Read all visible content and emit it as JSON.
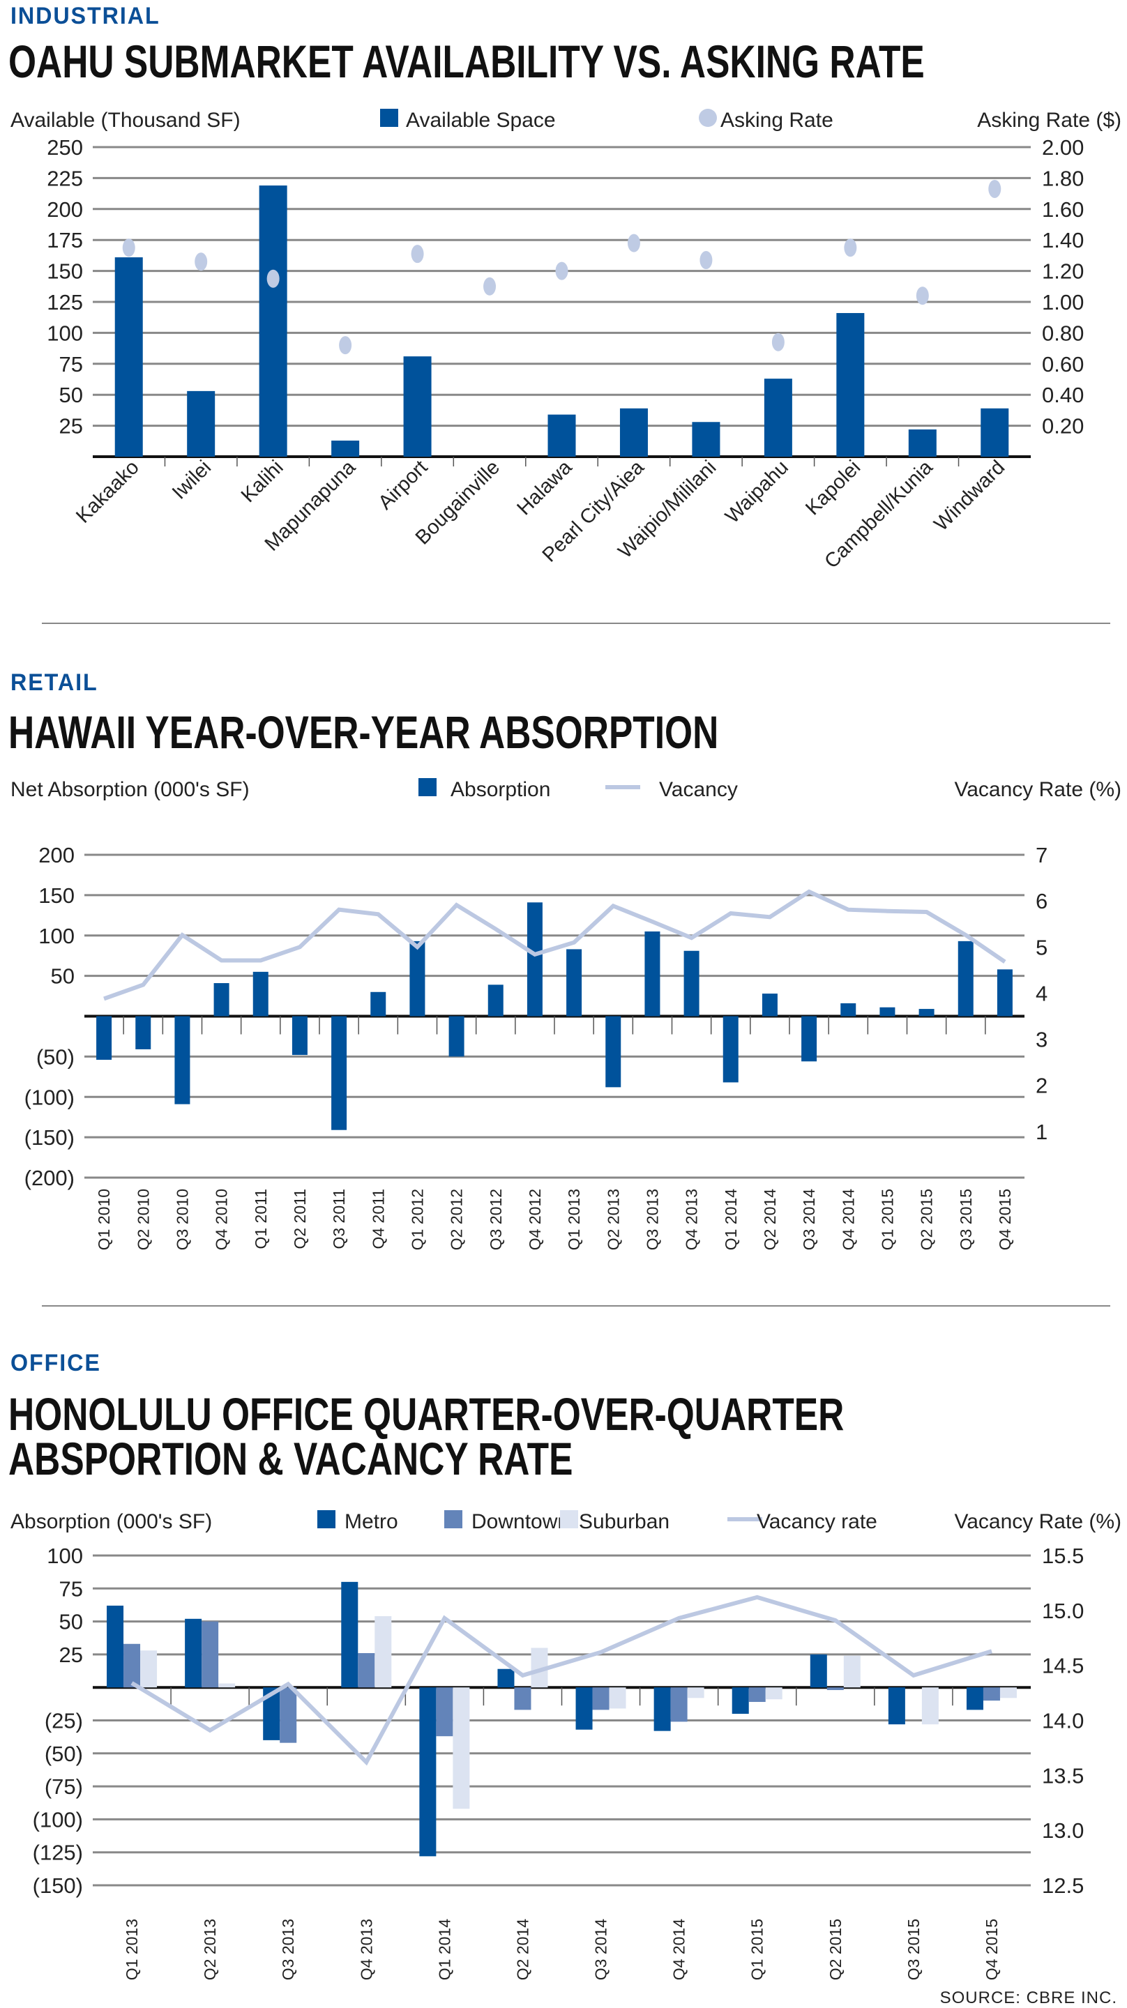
{
  "colors": {
    "metro": "#00529b",
    "downtown": "#6384b9",
    "suburban": "#dce3f1",
    "line": "#bcc8e2",
    "dot": "#bfcbe4",
    "grid": "#888888"
  },
  "source": "SOURCE: CBRE INC.",
  "chart_data": [
    {
      "section": "INDUSTRIAL",
      "type": "bar",
      "title": "OAHU SUBMARKET AVAILABILITY VS. ASKING RATE",
      "ylabel": "Available (Thousand SF)",
      "y2label": "Asking Rate ($)",
      "legend": [
        "Available Space",
        "Asking Rate"
      ],
      "ylim": [
        0,
        250
      ],
      "y2lim": [
        0,
        2.0
      ],
      "yticks": [
        "25",
        "50",
        "75",
        "100",
        "125",
        "150",
        "175",
        "200",
        "225",
        "250"
      ],
      "y2ticks": [
        "0.20",
        "0.40",
        "0.60",
        "0.80",
        "1.00",
        "1.20",
        "1.40",
        "1.60",
        "1.80",
        "2.00"
      ],
      "categories": [
        "Kakaako",
        "Iwilei",
        "Kalihi",
        "Mapunapuna",
        "Airport",
        "Bougainville",
        "Halawa",
        "Pearl City/Aiea",
        "Waipio/Mililani",
        "Waipahu",
        "Kapolei",
        "Campbell/Kunia",
        "Windward"
      ],
      "series": [
        {
          "name": "Available Space",
          "type": "bar",
          "values": [
            161,
            53,
            219,
            13,
            81,
            0,
            34,
            39,
            28,
            63,
            116,
            22,
            39
          ]
        },
        {
          "name": "Asking Rate",
          "type": "scatter",
          "axis": "right",
          "values": [
            1.35,
            1.26,
            1.15,
            0.72,
            1.31,
            1.1,
            1.2,
            1.38,
            1.27,
            0.74,
            1.35,
            1.04,
            1.73
          ]
        }
      ],
      "grid": true
    },
    {
      "section": "RETAIL",
      "type": "bar",
      "title": "HAWAII YEAR-OVER-YEAR ABSORPTION",
      "ylabel": "Net Absorption (000's SF)",
      "y2label": "Vacancy Rate (%)",
      "legend": [
        "Absorption",
        "Vacancy"
      ],
      "ylim": [
        -200,
        200
      ],
      "y2lim": [
        0,
        7
      ],
      "yticks": [
        "(200)",
        "(150)",
        "(100)",
        "(50)",
        "",
        "50",
        "100",
        "150",
        "200"
      ],
      "y2ticks": [
        "1",
        "2",
        "3",
        "4",
        "5",
        "6",
        "7"
      ],
      "categories": [
        "Q1 2010",
        "Q2 2010",
        "Q3 2010",
        "Q4 2010",
        "Q1 2011",
        "Q2 2011",
        "Q3 2011",
        "Q4 2011",
        "Q1 2012",
        "Q2 2012",
        "Q3 2012",
        "Q4 2012",
        "Q1 2013",
        "Q2 2013",
        "Q3 2013",
        "Q4 2013",
        "Q1 2014",
        "Q2 2014",
        "Q3 2014",
        "Q4 2014",
        "Q1 2015",
        "Q2 2015",
        "Q3 2015",
        "Q4 2015"
      ],
      "series": [
        {
          "name": "Absorption",
          "type": "bar",
          "values": [
            -54,
            -41,
            -109,
            41,
            55,
            -48,
            -141,
            30,
            93,
            -50,
            39,
            141,
            83,
            -88,
            105,
            81,
            -82,
            28,
            -56,
            16,
            11,
            9,
            93,
            58
          ]
        },
        {
          "name": "Vacancy",
          "type": "line",
          "axis": "right",
          "values": [
            3.88,
            4.18,
            5.26,
            4.71,
            4.71,
            5.0,
            5.81,
            5.71,
            5.0,
            5.91,
            5.39,
            4.84,
            5.1,
            5.89,
            5.55,
            5.2,
            5.73,
            5.65,
            6.2,
            5.81,
            5.78,
            5.76,
            5.26,
            4.68
          ]
        }
      ],
      "grid": true
    },
    {
      "section": "OFFICE",
      "type": "bar",
      "title": "HONOLULU OFFICE QUARTER-OVER-QUARTER",
      "title2": "ABSPORTION & VACANCY RATE",
      "ylabel": "Absorption (000's SF)",
      "y2label": "Vacancy Rate (%)",
      "legend": [
        "Metro",
        "Downtown",
        "Suburban",
        "Vacancy rate"
      ],
      "ylim": [
        -150,
        100
      ],
      "y2lim": [
        12.5,
        15.5
      ],
      "yticks": [
        "(150)",
        "(125)",
        "(100)",
        "(75)",
        "(50)",
        "(25)",
        "",
        "25",
        "50",
        "75",
        "100"
      ],
      "y2ticks": [
        "12.5",
        "13.0",
        "13.5",
        "14.0",
        "14.5",
        "15.0",
        "15.5"
      ],
      "categories": [
        "Q1 2013",
        "Q2 2013",
        "Q3 2013",
        "Q4 2013",
        "Q1 2014",
        "Q2 2014",
        "Q3 2014",
        "Q4 2014",
        "Q1 2015",
        "Q2 2015",
        "Q3 2015",
        "Q4 2015"
      ],
      "series": [
        {
          "name": "Metro",
          "type": "bar",
          "values": [
            62,
            52,
            -40,
            80,
            -128,
            14,
            -32,
            -33,
            -20,
            25,
            -28,
            -17
          ]
        },
        {
          "name": "Downtown",
          "type": "bar",
          "values": [
            33,
            50,
            -42,
            26,
            -37,
            -17,
            -17,
            -26,
            -11,
            -2,
            0,
            -10
          ]
        },
        {
          "name": "Suburban",
          "type": "bar",
          "values": [
            28,
            3,
            0,
            54,
            -92,
            30,
            -16,
            -8,
            -9,
            24,
            -28,
            -8
          ]
        },
        {
          "name": "Vacancy rate",
          "type": "line",
          "axis": "right",
          "values": [
            14.34,
            13.91,
            14.33,
            13.62,
            14.93,
            14.41,
            14.62,
            14.93,
            15.12,
            14.91,
            14.41,
            14.63
          ]
        }
      ],
      "grid": true
    }
  ]
}
